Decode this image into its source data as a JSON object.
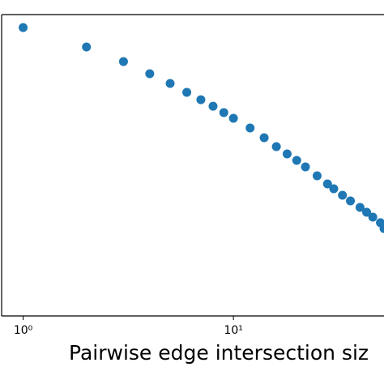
{
  "chart_data": {
    "type": "scatter",
    "xlabel": "Pairwise edge intersection siz",
    "x": [
      1,
      2,
      3,
      4,
      5,
      6,
      7,
      8,
      9,
      10,
      12,
      14,
      16,
      18,
      20,
      22,
      25,
      28,
      30,
      33,
      36,
      40,
      43,
      46,
      50,
      52
    ],
    "values": [
      552000,
      226000,
      116000,
      66500,
      42600,
      28300,
      20200,
      15000,
      11200,
      8620,
      5520,
      3530,
      2350,
      1680,
      1250,
      929,
      617,
      426,
      340,
      253,
      195,
      145,
      116,
      93,
      72,
      55
    ],
    "color": "#1f77b4",
    "xscale": "log",
    "yscale": "log",
    "xlim": [
      0.79,
      52
    ],
    "ylim": [
      1,
      1000000
    ],
    "xticks": [
      {
        "value": 1,
        "label": "10⁰"
      },
      {
        "value": 10,
        "label": "10¹"
      }
    ]
  }
}
